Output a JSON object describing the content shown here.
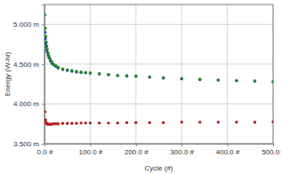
{
  "chart_data": {
    "type": "scatter",
    "x_label": "Cycle (#)",
    "y_label": "Energy (W-hr)",
    "x": [
      1,
      2,
      3,
      4,
      5,
      6,
      8,
      10,
      13,
      16,
      20,
      25,
      30,
      40,
      50,
      60,
      70,
      80,
      90,
      100,
      120,
      140,
      160,
      180,
      200,
      230,
      260,
      300,
      340,
      380,
      420,
      460,
      500
    ],
    "series": [
      {
        "color": "#1f3f9f",
        "values": [
          4.9,
          4.82,
          4.76,
          4.72,
          4.68,
          4.65,
          4.61,
          4.58,
          4.54,
          4.51,
          4.49,
          4.47,
          4.45,
          4.43,
          4.42,
          4.41,
          4.4,
          4.395,
          4.39,
          4.385,
          4.375,
          4.365,
          4.355,
          4.35,
          4.345,
          4.335,
          4.325,
          4.315,
          4.305,
          4.298,
          4.29,
          4.285,
          4.278
        ]
      },
      {
        "color": "#228b22",
        "values": [
          5.12,
          4.95,
          4.85,
          4.78,
          4.73,
          4.69,
          4.64,
          4.6,
          4.56,
          4.53,
          4.5,
          4.48,
          4.46,
          4.44,
          4.43,
          4.42,
          4.41,
          4.4,
          4.395,
          4.39,
          4.38,
          4.37,
          4.36,
          4.355,
          4.35,
          4.34,
          4.33,
          4.32,
          4.31,
          4.3,
          4.295,
          4.29,
          4.28
        ]
      },
      {
        "color": "#b01c1c",
        "values": [
          3.9,
          3.8,
          3.77,
          3.76,
          3.75,
          3.75,
          3.745,
          3.745,
          3.745,
          3.745,
          3.75,
          3.75,
          3.75,
          3.755,
          3.755,
          3.755,
          3.755,
          3.76,
          3.76,
          3.76,
          3.76,
          3.76,
          3.76,
          3.765,
          3.765,
          3.765,
          3.765,
          3.77,
          3.77,
          3.77,
          3.77,
          3.77,
          3.775
        ]
      }
    ],
    "marker": "circle",
    "xlim": [
      0,
      500
    ],
    "xticks": [
      {
        "value": 0,
        "label": "0.0 #"
      },
      {
        "value": 100,
        "label": "100.0 #"
      },
      {
        "value": 200,
        "label": "200.0 #"
      },
      {
        "value": 300,
        "label": "300.0 #"
      },
      {
        "value": 400,
        "label": "400.0 #"
      },
      {
        "value": 500,
        "label": "500.0 #"
      }
    ],
    "ylim": [
      3.5,
      5.25
    ],
    "yticks": [
      {
        "value": 3.5,
        "label": "3.500 m"
      },
      {
        "value": 4.0,
        "label": "4.000 m"
      },
      {
        "value": 4.5,
        "label": "4.500 m"
      },
      {
        "value": 5.0,
        "label": "5.000 m"
      }
    ],
    "grid": true
  }
}
